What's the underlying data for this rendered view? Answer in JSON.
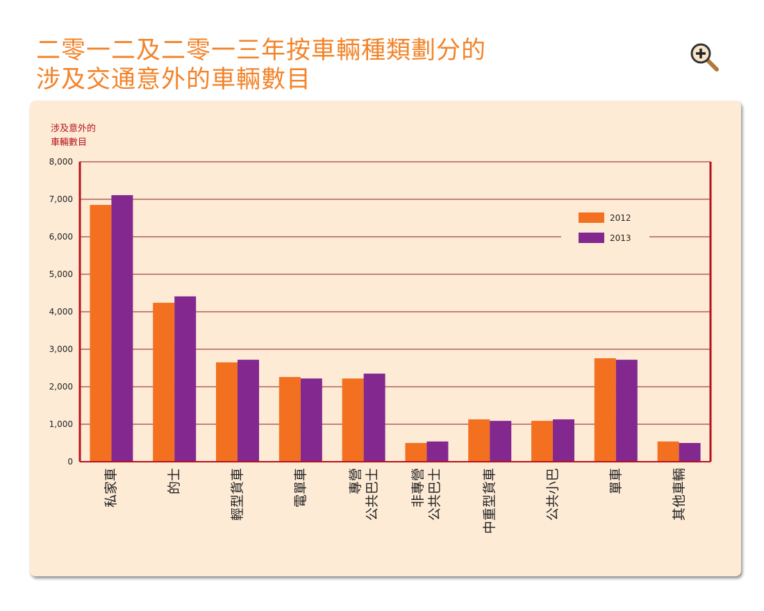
{
  "title": [
    "二零一二及二零一三年按車輛種類劃分的",
    "涉及交通意外的車輛數目"
  ],
  "zoom_icon": "magnifier-plus-icon",
  "colors": {
    "title": "#f2842a",
    "axis": "#b5121b",
    "grid": "#8b1a1a",
    "s2012": "#f37021",
    "s2013": "#83288f",
    "panel": "#fdebd6"
  },
  "chart_data": {
    "type": "bar",
    "ylabel": [
      "涉及意外的",
      "車輛數目"
    ],
    "ylim": [
      0,
      8000
    ],
    "yticks": [
      "0",
      "1,000",
      "2,000",
      "3,000",
      "4,000",
      "5,000",
      "6,000",
      "7,000",
      "8,000"
    ],
    "grid": true,
    "legend": "top-right",
    "categories": [
      [
        "私家車"
      ],
      [
        "的士"
      ],
      [
        "輕型貨車"
      ],
      [
        "電單車"
      ],
      [
        "專營",
        "公共巴士"
      ],
      [
        "非專營",
        "公共巴士"
      ],
      [
        "中重型貨車"
      ],
      [
        "公共小巴"
      ],
      [
        "單車"
      ],
      [
        "其他車輛"
      ]
    ],
    "series": [
      {
        "name": "2012",
        "values": [
          6850,
          4240,
          2650,
          2260,
          2220,
          500,
          1130,
          1090,
          2760,
          540
        ]
      },
      {
        "name": "2013",
        "values": [
          7110,
          4410,
          2720,
          2220,
          2350,
          540,
          1090,
          1130,
          2720,
          500
        ]
      }
    ]
  }
}
